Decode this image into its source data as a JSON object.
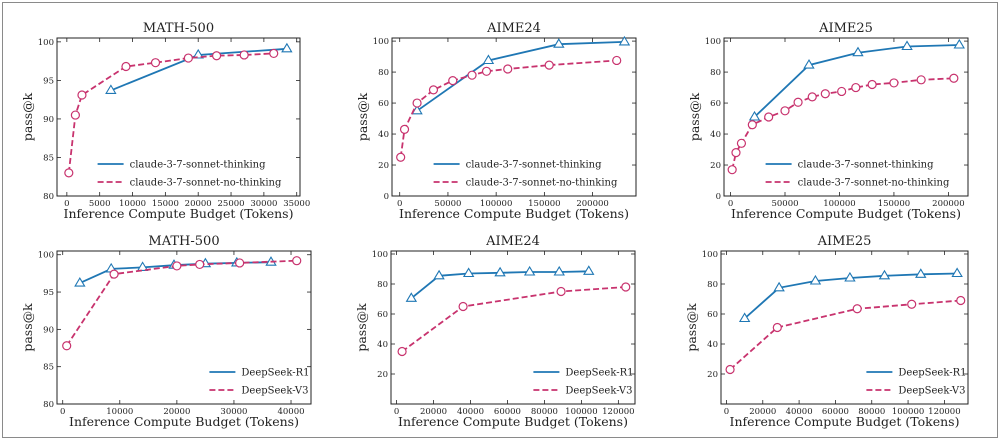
{
  "colors": {
    "blue": "#1f77b4",
    "pink": "#c8336e",
    "marker_fill": "#ffffff"
  },
  "chart_data": [
    {
      "type": "line",
      "title": "MATH-500",
      "xlabel": "Inference Compute Budget (Tokens)",
      "ylabel": "pass@k",
      "xlim": [
        -1500,
        35500
      ],
      "ylim": [
        80,
        100.5
      ],
      "xticks": [
        0,
        5000,
        10000,
        15000,
        20000,
        25000,
        30000,
        35000
      ],
      "xtick_labels": [
        "0",
        "5000",
        "10000",
        "15000",
        "20000",
        "25000",
        "30000",
        "35000"
      ],
      "yticks": [
        80,
        85,
        90,
        95,
        100
      ],
      "ytick_labels": [
        "80",
        "85",
        "90",
        "95",
        "100"
      ],
      "legend": "lower-right",
      "series": [
        {
          "name": "claude-3-7-sonnet-thinking",
          "style": "solid",
          "marker": "triangle",
          "color": "blue",
          "x": [
            6700,
            20000,
            33500
          ],
          "y": [
            93.7,
            98.3,
            99.1
          ]
        },
        {
          "name": "claude-3-7-sonnet-no-thinking",
          "style": "dashed",
          "marker": "circle",
          "color": "pink",
          "x": [
            300,
            1300,
            2300,
            9000,
            13500,
            18500,
            22800,
            27000,
            31500
          ],
          "y": [
            83,
            90.5,
            93.1,
            96.8,
            97.3,
            97.9,
            98.2,
            98.3,
            98.5
          ]
        }
      ]
    },
    {
      "type": "line",
      "title": "AIME24",
      "xlabel": "Inference Compute Budget (Tokens)",
      "ylabel": "pass@k",
      "xlim": [
        -8000,
        245000
      ],
      "ylim": [
        0,
        102
      ],
      "xticks": [
        0,
        50000,
        100000,
        150000,
        200000
      ],
      "xtick_labels": [
        "0",
        "50000",
        "100000",
        "150000",
        "200000"
      ],
      "yticks": [
        0,
        20,
        40,
        60,
        80,
        100
      ],
      "ytick_labels": [
        "0",
        "20",
        "40",
        "60",
        "80",
        "100"
      ],
      "legend": "lower-right",
      "series": [
        {
          "name": "claude-3-7-sonnet-thinking",
          "style": "solid",
          "marker": "triangle",
          "color": "blue",
          "x": [
            18000,
            92000,
            165000,
            233000
          ],
          "y": [
            55,
            87.5,
            98,
            99.5
          ]
        },
        {
          "name": "claude-3-7-sonnet-no-thinking",
          "style": "dashed",
          "marker": "circle",
          "color": "pink",
          "x": [
            1000,
            5000,
            18000,
            35000,
            55000,
            75000,
            90000,
            112000,
            155000,
            225000
          ],
          "y": [
            25,
            43,
            60,
            68.5,
            74.5,
            78,
            80.5,
            82,
            84.5,
            87.5
          ]
        }
      ]
    },
    {
      "type": "line",
      "title": "AIME25",
      "xlabel": "Inference Compute Budget (Tokens)",
      "ylabel": "pass@k",
      "xlim": [
        -6000,
        218000
      ],
      "ylim": [
        0,
        102
      ],
      "xticks": [
        0,
        50000,
        100000,
        150000,
        200000
      ],
      "xtick_labels": [
        "0",
        "50000",
        "100000",
        "150000",
        "200000"
      ],
      "yticks": [
        0,
        20,
        40,
        60,
        80,
        100
      ],
      "ytick_labels": [
        "0",
        "20",
        "40",
        "60",
        "80",
        "100"
      ],
      "legend": "lower-right",
      "series": [
        {
          "name": "claude-3-7-sonnet-thinking",
          "style": "solid",
          "marker": "triangle",
          "color": "blue",
          "x": [
            22000,
            72000,
            117000,
            162000,
            210000
          ],
          "y": [
            51,
            84.5,
            92.5,
            96.5,
            97.5
          ]
        },
        {
          "name": "claude-3-7-sonnet-no-thinking",
          "style": "dashed",
          "marker": "circle",
          "color": "pink",
          "x": [
            1500,
            5000,
            10000,
            20000,
            35000,
            50000,
            62000,
            75000,
            87000,
            102000,
            115000,
            130000,
            150000,
            175000,
            205000
          ],
          "y": [
            17,
            28,
            34,
            46,
            51,
            55,
            60.5,
            64,
            66,
            67.5,
            70,
            72,
            73,
            75,
            76
          ]
        }
      ]
    },
    {
      "type": "line",
      "title": "MATH-500",
      "xlabel": "Inference Compute Budget (Tokens)",
      "ylabel": "pass@k",
      "xlim": [
        -1000,
        43500
      ],
      "ylim": [
        80,
        100.5
      ],
      "xticks": [
        0,
        10000,
        20000,
        30000,
        40000
      ],
      "xtick_labels": [
        "0",
        "10000",
        "20000",
        "30000",
        "40000"
      ],
      "yticks": [
        80,
        85,
        90,
        95,
        100
      ],
      "ytick_labels": [
        "80",
        "85",
        "90",
        "95",
        "100"
      ],
      "legend": "lower-right",
      "series": [
        {
          "name": "DeepSeek-R1",
          "style": "solid",
          "marker": "triangle",
          "color": "blue",
          "x": [
            3000,
            8500,
            14000,
            19500,
            25000,
            30500,
            36500
          ],
          "y": [
            96.2,
            98.1,
            98.3,
            98.6,
            98.8,
            98.9,
            99
          ]
        },
        {
          "name": "DeepSeek-V3",
          "style": "dashed",
          "marker": "circle",
          "color": "pink",
          "x": [
            700,
            9000,
            20000,
            24000,
            31000,
            41000
          ],
          "y": [
            87.8,
            97.4,
            98.5,
            98.7,
            98.9,
            99.2
          ]
        }
      ]
    },
    {
      "type": "line",
      "title": "AIME24",
      "xlabel": "Inference Compute Budget (Tokens)",
      "ylabel": "pass@k",
      "xlim": [
        -3000,
        129000
      ],
      "ylim": [
        0,
        102
      ],
      "xticks": [
        0,
        20000,
        40000,
        60000,
        80000,
        100000,
        120000
      ],
      "xtick_labels": [
        "0",
        "20000",
        "40000",
        "60000",
        "80000",
        "100000",
        "120000"
      ],
      "yticks": [
        20,
        40,
        60,
        80,
        100
      ],
      "ytick_labels": [
        "20",
        "40",
        "60",
        "80",
        "100"
      ],
      "legend": "lower-right",
      "series": [
        {
          "name": "DeepSeek-R1",
          "style": "solid",
          "marker": "triangle",
          "color": "blue",
          "x": [
            8000,
            23000,
            39000,
            56000,
            72000,
            88000,
            104000
          ],
          "y": [
            70.5,
            85.5,
            87,
            87.5,
            88,
            88,
            88.5
          ]
        },
        {
          "name": "DeepSeek-V3",
          "style": "dashed",
          "marker": "circle",
          "color": "pink",
          "x": [
            3000,
            36000,
            89000,
            124000
          ],
          "y": [
            35,
            65,
            75,
            78
          ]
        }
      ]
    },
    {
      "type": "line",
      "title": "AIME25",
      "xlabel": "Inference Compute Budget (Tokens)",
      "ylabel": "pass@k",
      "xlim": [
        -3000,
        133000
      ],
      "ylim": [
        0,
        102
      ],
      "xticks": [
        0,
        20000,
        40000,
        60000,
        80000,
        100000,
        120000
      ],
      "xtick_labels": [
        "0",
        "20000",
        "40000",
        "60000",
        "80000",
        "100000",
        "120000"
      ],
      "yticks": [
        20,
        40,
        60,
        80,
        100
      ],
      "ytick_labels": [
        "20",
        "40",
        "60",
        "80",
        "100"
      ],
      "legend": "lower-right",
      "series": [
        {
          "name": "DeepSeek-R1",
          "style": "solid",
          "marker": "triangle",
          "color": "blue",
          "x": [
            10000,
            29000,
            49000,
            68000,
            87000,
            107000,
            127000
          ],
          "y": [
            57,
            77.5,
            82,
            84,
            85.5,
            86.5,
            87
          ]
        },
        {
          "name": "DeepSeek-V3",
          "style": "dashed",
          "marker": "circle",
          "color": "pink",
          "x": [
            2000,
            28000,
            72000,
            102000,
            129000
          ],
          "y": [
            23,
            51,
            63.5,
            66.5,
            69
          ]
        }
      ]
    }
  ]
}
